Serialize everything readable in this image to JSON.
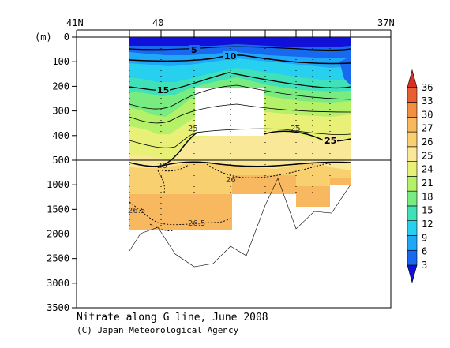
{
  "chart_data": {
    "type": "heatmap",
    "title": "Nitrate along G line, June 2008",
    "credit": "(C) Japan Meteorological Agency",
    "ylabel": "(m)",
    "x_top_ticks": [
      "41N",
      "40",
      "37N"
    ],
    "y_ticks_upper": [
      0,
      100,
      200,
      300,
      400,
      500
    ],
    "y_ticks_lower": [
      1000,
      1500,
      2000,
      2500,
      3000,
      3500
    ],
    "colorbar": {
      "levels": [
        3,
        6,
        9,
        12,
        15,
        18,
        21,
        24,
        25,
        26,
        27,
        30,
        33,
        36
      ],
      "colors": [
        "#1010d8",
        "#1868f0",
        "#20a8f8",
        "#28d0f0",
        "#40e0b8",
        "#78ec80",
        "#b4f068",
        "#e8f078",
        "#f8e898",
        "#f8d070",
        "#f8b860",
        "#f09040",
        "#e86030",
        "#d83020"
      ]
    },
    "contour_labels": [
      "5",
      "10",
      "15",
      "25",
      "25",
      "25",
      "26",
      "26",
      "26.5",
      "26.5"
    ],
    "layers": [
      {
        "depth_top": 0,
        "depth_bottom": 20,
        "nitrate": "<3"
      },
      {
        "depth_top": 20,
        "depth_bottom": 60,
        "nitrate": "5-10"
      },
      {
        "depth_top": 60,
        "depth_bottom": 150,
        "nitrate": "10-18"
      },
      {
        "depth_top": 150,
        "depth_bottom": 300,
        "nitrate": "15-24"
      },
      {
        "depth_top": 300,
        "depth_bottom": 450,
        "nitrate": "24-25"
      },
      {
        "depth_top": 450,
        "depth_bottom": 1000,
        "nitrate": "25-26"
      },
      {
        "depth_top": 1000,
        "depth_bottom": 1900,
        "nitrate": "26-27"
      }
    ]
  }
}
